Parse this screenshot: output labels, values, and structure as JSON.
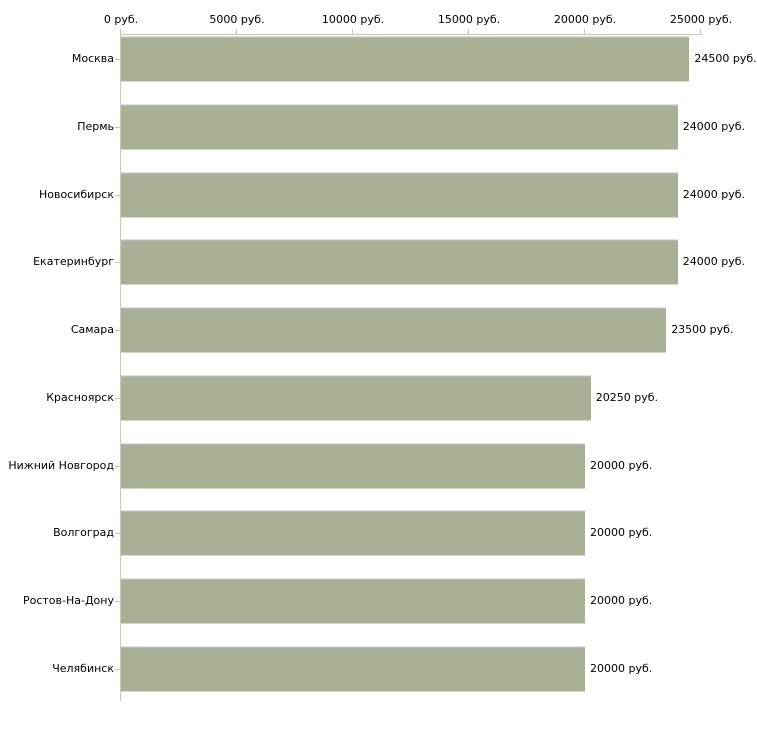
{
  "chart_data": {
    "type": "bar",
    "orientation": "horizontal",
    "title": "",
    "categories": [
      "Москва",
      "Пермь",
      "Новосибирск",
      "Екатеринбург",
      "Самара",
      "Красноярск",
      "Нижний Новгород",
      "Волгоград",
      "Ростов-На-Дону",
      "Челябинск"
    ],
    "values": [
      24500,
      24000,
      24000,
      24000,
      23500,
      20250,
      20000,
      20000,
      20000,
      20000
    ],
    "value_labels": [
      "24500 руб.",
      "24000 руб.",
      "24000 руб.",
      "24000 руб.",
      "23500 руб.",
      "20250 руб.",
      "20000 руб.",
      "20000 руб.",
      "20000 руб.",
      "20000 руб."
    ],
    "x_tick_values": [
      0,
      5000,
      10000,
      15000,
      20000,
      25000
    ],
    "x_tick_labels": [
      "0 руб.",
      "5000 руб.",
      "10000 руб.",
      "15000 руб.",
      "20000 руб.",
      "25000 руб."
    ],
    "xlim": [
      0,
      25000
    ],
    "unit": "руб.",
    "grid": false,
    "legend": null,
    "colors": {
      "bar": "#aab096",
      "bar_top_edge": "#c6c6c6",
      "axis": "#cacab3",
      "text": "#000000",
      "background": "#ffffff"
    }
  }
}
